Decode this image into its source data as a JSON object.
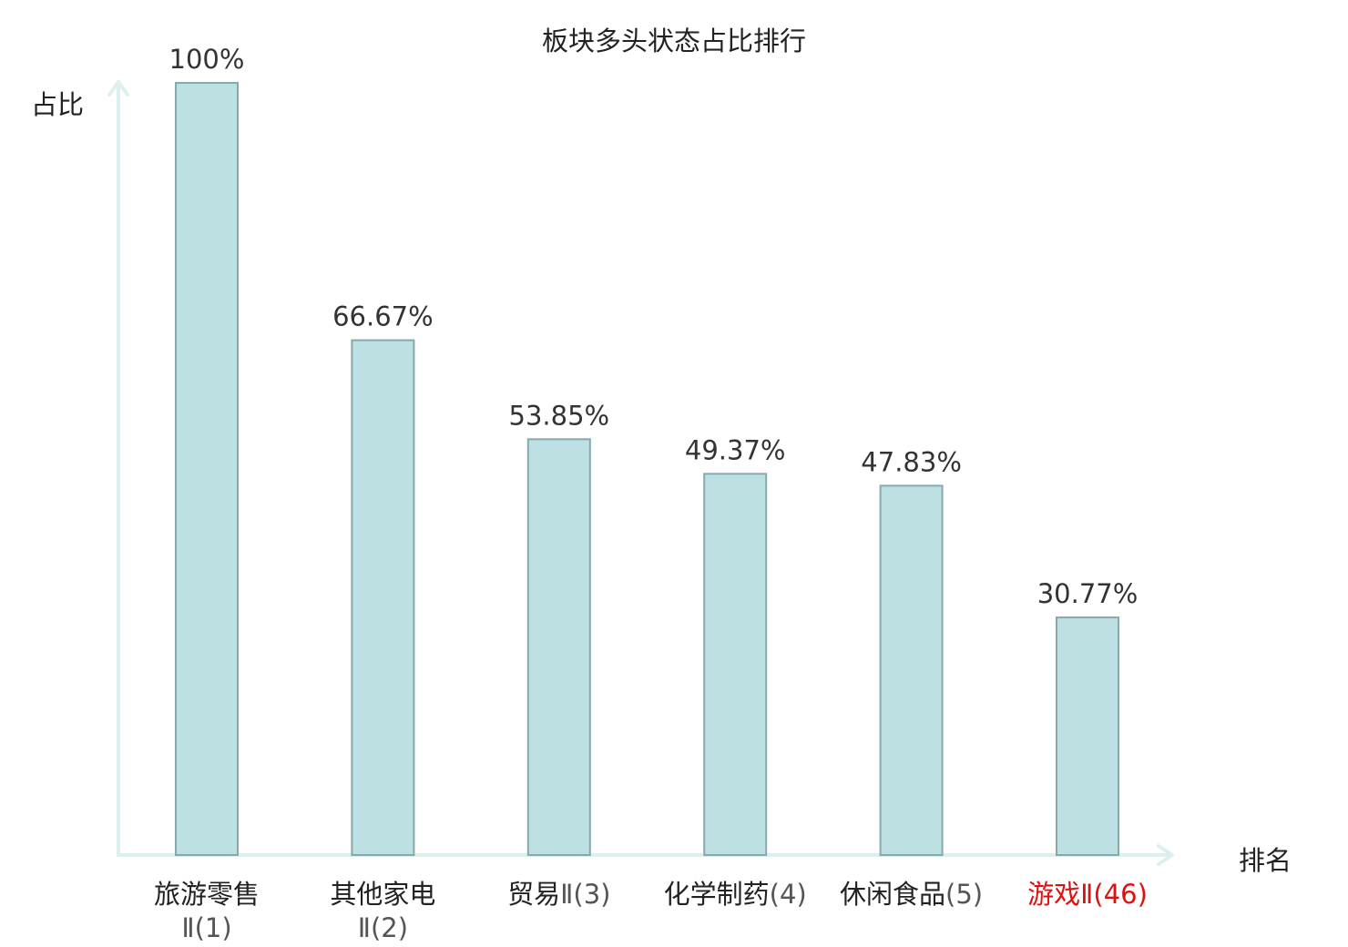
{
  "chart_data": {
    "type": "bar",
    "title": "板块多头状态占比排行",
    "ylabel": "占比",
    "xlabel": "排名",
    "ylim": [
      0,
      100
    ],
    "grid": false,
    "categories": [
      {
        "name": "旅游零售",
        "suffix": "Ⅱ(1)",
        "wrap": true,
        "highlight": false
      },
      {
        "name": "其他家电",
        "suffix": "Ⅱ(2)",
        "wrap": true,
        "highlight": false
      },
      {
        "name": "贸易",
        "suffix": "Ⅱ(3)",
        "wrap": false,
        "highlight": false
      },
      {
        "name": "化学制药",
        "suffix": "(4)",
        "wrap": false,
        "highlight": false
      },
      {
        "name": "休闲食品",
        "suffix": "(5)",
        "wrap": false,
        "highlight": false
      },
      {
        "name": "游戏",
        "suffix": "Ⅱ(46)",
        "wrap": false,
        "highlight": true
      }
    ],
    "values": [
      100,
      66.67,
      53.85,
      49.37,
      47.83,
      30.77
    ],
    "value_labels": [
      "100%",
      "66.67%",
      "53.85%",
      "49.37%",
      "47.83%",
      "30.77%"
    ],
    "colors": {
      "bar_fill": "#bde0e3",
      "bar_stroke": "#86a9ad",
      "axis": "#dcf1ef",
      "highlight_text": "#dd1111",
      "text": "#222222"
    }
  }
}
